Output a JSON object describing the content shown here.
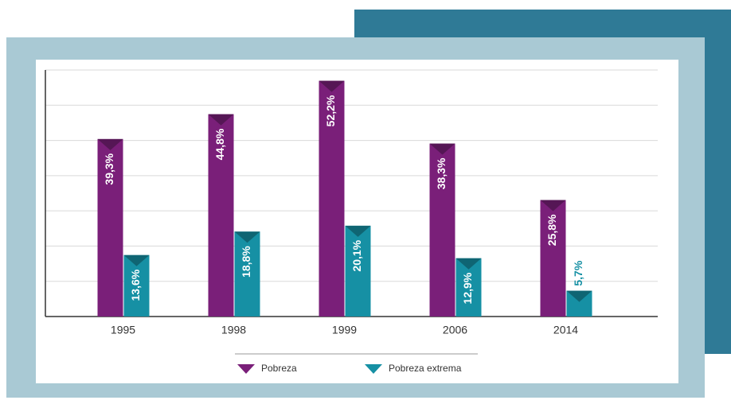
{
  "chart_data": {
    "type": "bar",
    "categories": [
      "1995",
      "1998",
      "1999",
      "2006",
      "2014"
    ],
    "series": [
      {
        "name": "Pobreza",
        "color": "#7a1f79",
        "values": [
          39.3,
          44.8,
          52.2,
          38.3,
          25.8
        ],
        "value_labels": [
          "39,3%",
          "44,8%",
          "52,2%",
          "38,3%",
          "25,8%"
        ]
      },
      {
        "name": "Pobreza extrema",
        "color": "#1690a4",
        "values": [
          13.6,
          18.8,
          20.1,
          12.9,
          5.7
        ],
        "value_labels": [
          "13,6%",
          "18,8%",
          "20,1%",
          "12,9%",
          "5,7%"
        ]
      }
    ],
    "ylim": [
      0,
      54.6
    ],
    "yticks": [
      0,
      7.8,
      15.6,
      23.4,
      31.2,
      39,
      46.8,
      54.6
    ],
    "grid": true
  }
}
